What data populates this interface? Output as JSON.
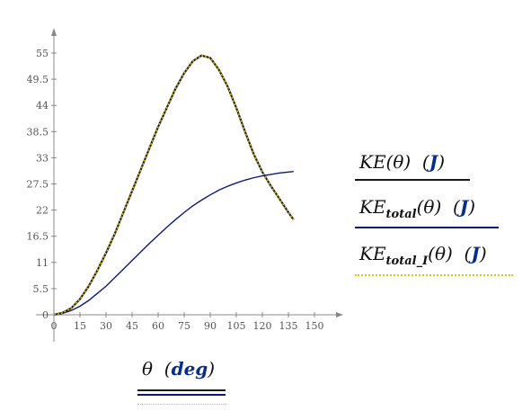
{
  "chart_data": {
    "type": "line",
    "xlim": [
      0,
      150
    ],
    "ylim": [
      0,
      58
    ],
    "x_ticks": [
      "0",
      "15",
      "30",
      "45",
      "60",
      "75",
      "90",
      "105",
      "120",
      "135",
      "150"
    ],
    "y_ticks": [
      "0",
      "5.5",
      "11",
      "16.5",
      "22",
      "27.5",
      "33",
      "38.5",
      "44",
      "49.5",
      "55"
    ],
    "xlabel": {
      "var": "θ",
      "unit": "deg"
    },
    "series": [
      {
        "name": "KE(θ) (J)",
        "color": "#1a1a1a",
        "style": "solid",
        "x": [
          0,
          5,
          10,
          15,
          20,
          25,
          30,
          35,
          40,
          45,
          50,
          55,
          60,
          65,
          70,
          75,
          80,
          85,
          90,
          95,
          100,
          105,
          110,
          115,
          120,
          125,
          130,
          135,
          138
        ],
        "y": [
          0,
          0.4,
          1.4,
          3.3,
          6.0,
          9.3,
          13.0,
          17.0,
          21.5,
          26.0,
          30.5,
          35.0,
          39.5,
          43.5,
          47.5,
          50.8,
          53.3,
          54.5,
          54.0,
          51.5,
          48.0,
          43.5,
          38.5,
          33.8,
          30.0,
          27.0,
          24.3,
          21.5,
          20.0
        ]
      },
      {
        "name": "KE_total(θ) (J)",
        "color": "#0b1a7a",
        "style": "solid",
        "x": [
          0,
          5,
          10,
          15,
          20,
          25,
          30,
          35,
          40,
          45,
          50,
          55,
          60,
          65,
          70,
          75,
          80,
          85,
          90,
          95,
          100,
          105,
          110,
          115,
          120,
          125,
          130,
          135,
          138
        ],
        "y": [
          0,
          0.3,
          0.9,
          1.8,
          3.0,
          4.5,
          6.0,
          7.8,
          9.6,
          11.4,
          13.2,
          15.0,
          16.7,
          18.4,
          20.0,
          21.5,
          22.9,
          24.1,
          25.2,
          26.2,
          27.0,
          27.7,
          28.3,
          28.8,
          29.2,
          29.5,
          29.8,
          30.0,
          30.1
        ]
      },
      {
        "name": "KE_total_I(θ) (J)",
        "color": "#e6c200",
        "style": "dotted",
        "x": [
          0,
          5,
          10,
          15,
          20,
          25,
          30,
          35,
          40,
          45,
          50,
          55,
          60,
          65,
          70,
          75,
          80,
          85,
          90,
          95,
          100,
          105,
          110,
          115,
          120,
          125,
          130,
          135,
          138
        ],
        "y": [
          0,
          0.4,
          1.4,
          3.3,
          6.0,
          9.3,
          13.0,
          17.0,
          21.5,
          26.0,
          30.5,
          35.0,
          39.5,
          43.5,
          47.5,
          50.8,
          53.3,
          54.5,
          54.0,
          51.5,
          48.0,
          43.5,
          38.5,
          33.8,
          30.0,
          27.0,
          24.3,
          21.5,
          20.0
        ]
      }
    ]
  },
  "legend": [
    {
      "base": "KE",
      "sub": "",
      "arg": "(θ)",
      "unit": "J"
    },
    {
      "base": "KE",
      "sub": "total",
      "arg": "(θ)",
      "unit": "J"
    },
    {
      "base": "KE",
      "sub": "total_I",
      "arg": "(θ)",
      "unit": "J"
    }
  ]
}
